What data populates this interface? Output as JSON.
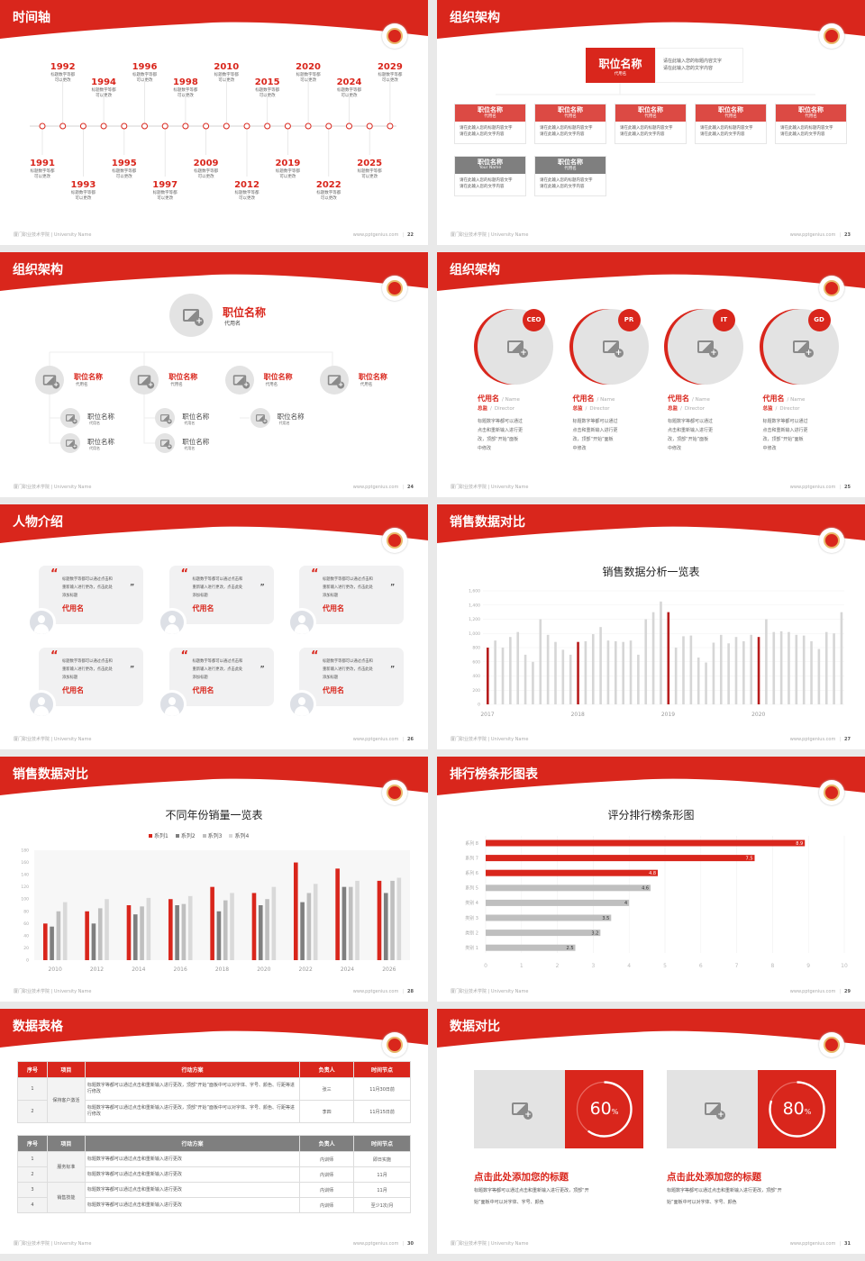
{
  "footer": {
    "school": "厦门职业技术学院 | University Name",
    "url": "www.pptgenius.com"
  },
  "colors": {
    "accent": "#d9261c",
    "gray": "#7f7f7f",
    "light_gray": "#d0d0d0",
    "panel": "#e6e6e6"
  },
  "slides": [
    {
      "title": "时间轴",
      "page": "22",
      "timeline": [
        {
          "year": "1991",
          "text": [
            "标题数字等都",
            "可以更改"
          ]
        },
        {
          "year": "1992",
          "text": [
            "标题数字等都",
            "可以更改"
          ]
        },
        {
          "year": "1993",
          "text": [
            "标题数字等都",
            "可以更改"
          ]
        },
        {
          "year": "1994",
          "text": [
            "标题数字等都",
            "可以更改"
          ]
        },
        {
          "year": "1995",
          "text": [
            "标题数字等都",
            "可以更改"
          ]
        },
        {
          "year": "1996",
          "text": [
            "标题数字等都",
            "可以更改"
          ]
        },
        {
          "year": "1997",
          "text": [
            "标题数字等都",
            "可以更改"
          ]
        },
        {
          "year": "1998",
          "text": [
            "标题数字等都",
            "可以更改"
          ]
        },
        {
          "year": "2009",
          "text": [
            "标题数字等都",
            "可以更改"
          ]
        },
        {
          "year": "2010",
          "text": [
            "标题数字等都",
            "可以更改"
          ]
        },
        {
          "year": "2012",
          "text": [
            "标题数字等都",
            "可以更改"
          ]
        },
        {
          "year": "2015",
          "text": [
            "标题数字等都",
            "可以更改"
          ]
        },
        {
          "year": "2019",
          "text": [
            "标题数字等都",
            "可以更改"
          ]
        },
        {
          "year": "2020",
          "text": [
            "标题数字等都",
            "可以更改"
          ]
        },
        {
          "year": "2022",
          "text": [
            "标题数字等都",
            "可以更改"
          ]
        },
        {
          "year": "2024",
          "text": [
            "标题数字等都",
            "可以更改"
          ]
        },
        {
          "year": "2025",
          "text": [
            "标题数字等都",
            "可以更改"
          ]
        },
        {
          "year": "2029",
          "text": [
            "标题数字等都",
            "可以更改"
          ]
        }
      ]
    },
    {
      "title": "组织架构",
      "page": "23",
      "top": {
        "title": "职位名称",
        "sub": "代用名",
        "desc": [
          "请在此输入您的标题内容文字",
          "请在此输入您的文字内容"
        ]
      },
      "row1": [
        {
          "title": "职位名称",
          "sub": "代用名",
          "desc": [
            "请在此输入您的标题内容文字",
            "请在此输入您的文字内容"
          ]
        },
        {
          "title": "职位名称",
          "sub": "代用名",
          "desc": [
            "请在此输入您的标题内容文字",
            "请在此输入您的文字内容"
          ]
        },
        {
          "title": "职位名称",
          "sub": "代用名",
          "desc": [
            "请在此输入您的标题内容文字",
            "请在此输入您的文字内容"
          ]
        },
        {
          "title": "职位名称",
          "sub": "代用名",
          "desc": [
            "请在此输入您的标题内容文字",
            "请在此输入您的文字内容"
          ]
        },
        {
          "title": "职位名称",
          "sub": "代用名",
          "desc": [
            "请在此输入您的标题内容文字",
            "请在此输入您的文字内容"
          ]
        }
      ],
      "row2": [
        {
          "title": "职位名称",
          "sub": "Your Name",
          "desc": [
            "请在此输入您的标题内容文字",
            "请在此输入您的文字内容"
          ]
        },
        {
          "title": "职位名称",
          "sub": "代用名",
          "desc": [
            "请在此输入您的标题内容文字",
            "请在此输入您的文字内容"
          ]
        }
      ]
    },
    {
      "title": "组织架构",
      "page": "24",
      "top": {
        "title": "职位名称",
        "sub": "代用名"
      },
      "mid": [
        {
          "title": "职位名称",
          "sub": "代用名",
          "children": [
            {
              "title": "职位名称",
              "sub": "代用名"
            },
            {
              "title": "职位名称",
              "sub": "代用名"
            }
          ]
        },
        {
          "title": "职位名称",
          "sub": "代用名",
          "children": [
            {
              "title": "职位名称",
              "sub": "代用名"
            },
            {
              "title": "职位名称",
              "sub": "代用名"
            }
          ]
        },
        {
          "title": "职位名称",
          "sub": "代用名",
          "children": [
            {
              "title": "职位名称",
              "sub": "代用名"
            }
          ]
        },
        {
          "title": "职位名称",
          "sub": "代用名",
          "children": []
        }
      ]
    },
    {
      "title": "组织架构",
      "page": "25",
      "people": [
        {
          "badge": "CEO",
          "name": "代用名",
          "name_en": "/ Name",
          "role": "总监",
          "role_en": "Director",
          "desc": [
            "标题数字等都可以通过",
            "点击和重新输入进行更",
            "改，顶部“开始”面板",
            "中修改"
          ]
        },
        {
          "badge": "PR",
          "name": "代用名",
          "name_en": "/ Name",
          "role": "总监",
          "role_en": "Director",
          "desc": [
            "标题数字等都可以通过",
            "点击和重新输入进行更",
            "改，顶部“开始”面板",
            "中修改"
          ]
        },
        {
          "badge": "IT",
          "name": "代用名",
          "name_en": "/ Name",
          "role": "总监",
          "role_en": "Director",
          "desc": [
            "标题数字等都可以通过",
            "点击和重新输入进行更",
            "改，顶部“开始”面板",
            "中修改"
          ]
        },
        {
          "badge": "GD",
          "name": "代用名",
          "name_en": "/ Name",
          "role": "总监",
          "role_en": "Director",
          "desc": [
            "标题数字等都可以通过",
            "点击和重新输入进行更",
            "改，顶部“开始”面板",
            "中修改"
          ]
        }
      ]
    },
    {
      "title": "人物介绍",
      "page": "26",
      "cards": [
        {
          "quote": [
            "标题数字等都可以通过点击和",
            "重新输入进行更改，点击此处",
            "添加标题"
          ],
          "name": "代用名"
        },
        {
          "quote": [
            "标题数字等都可以通过点击和",
            "重新输入进行更改，点击此处",
            "添加标题"
          ],
          "name": "代用名"
        },
        {
          "quote": [
            "标题数字等都可以通过点击和",
            "重新输入进行更改，点击此处",
            "添加标题"
          ],
          "name": "代用名"
        },
        {
          "quote": [
            "标题数字等都可以通过点击和",
            "重新输入进行更改，点击此处",
            "添加标题"
          ],
          "name": "代用名"
        },
        {
          "quote": [
            "标题数字等都可以通过点击和",
            "重新输入进行更改，点击此处",
            "添加标题"
          ],
          "name": "代用名"
        },
        {
          "quote": [
            "标题数字等都可以通过点击和",
            "重新输入进行更改，点击此处",
            "添加标题"
          ],
          "name": "代用名"
        }
      ]
    },
    {
      "title": "销售数据对比",
      "page": "27"
    },
    {
      "title": "销售数据对比",
      "page": "28"
    },
    {
      "title": "排行榜条形图表",
      "page": "29"
    },
    {
      "title": "数据表格",
      "page": "30",
      "table1": {
        "headers": [
          "序号",
          "项目",
          "行动方案",
          "负责人",
          "时间节点"
        ],
        "group": "保持客户激活",
        "rows": [
          [
            "1",
            "标题数字等都可以通过点击和重新输入进行更改，顶部“开始”面板中可以对字体、字号、颜色、行距等进行修改",
            "张三",
            "11月30日前"
          ],
          [
            "2",
            "标题数字等都可以通过点击和重新输入进行更改，顶部“开始”面板中可以对字体、字号、颜色、行距等进行修改",
            "李四",
            "11月15日前"
          ]
        ]
      },
      "table2": {
        "headers": [
          "序号",
          "项目",
          "行动方案",
          "负责人",
          "时间节点"
        ],
        "groups": [
          "服务标准",
          "销售技能"
        ],
        "rows": [
          [
            "1",
            "标题数字等都可以通过点击和重新输入进行更改",
            "内训师",
            "即日实施"
          ],
          [
            "2",
            "标题数字等都可以通过点击和重新输入进行更改",
            "内训师",
            "11月"
          ],
          [
            "3",
            "标题数字等都可以通过点击和重新输入进行更改",
            "内训师",
            "11月"
          ],
          [
            "4",
            "标题数字等都可以通过点击和重新输入进行更改",
            "内训师",
            "至少1次/月"
          ]
        ]
      }
    },
    {
      "title": "数据对比",
      "page": "31",
      "panels": [
        {
          "percent": 60,
          "value": "60",
          "unit": "%",
          "title": "点击此处添加您的标题",
          "desc": [
            "标题数字等都可以通过点击和重新输入进行更改，顶部“开",
            "始”面板中可以对字体、字号、颜色"
          ]
        },
        {
          "percent": 80,
          "value": "80",
          "unit": "%",
          "title": "点击此处添加您的标题",
          "desc": [
            "标题数字等都可以通过点击和重新输入进行更改，顶部“开",
            "始”面板中可以对字体、字号、颜色"
          ]
        }
      ]
    }
  ],
  "chart_data": [
    {
      "type": "bar",
      "title": "销售数据分析一览表",
      "x_labels": [
        "2017",
        "2018",
        "2019",
        "2020"
      ],
      "ylim": [
        0,
        1600
      ],
      "yticks": [
        "0",
        "200",
        "400",
        "600",
        "800",
        "1,000",
        "1,200",
        "1,400",
        "1,600"
      ],
      "grid": true,
      "highlight_every": 12,
      "values": [
        800,
        900,
        800,
        950,
        1020,
        700,
        600,
        1200,
        980,
        880,
        770,
        700,
        880,
        890,
        990,
        1090,
        900,
        890,
        880,
        900,
        700,
        1200,
        1300,
        1450,
        1300,
        800,
        960,
        970,
        660,
        590,
        870,
        980,
        860,
        950,
        890,
        980,
        950,
        1200,
        1020,
        1030,
        1020,
        980,
        970,
        890,
        780,
        1020,
        1000,
        1300
      ]
    },
    {
      "type": "bar",
      "title": "不同年份销量一览表",
      "categories": [
        "2010",
        "2012",
        "2014",
        "2016",
        "2018",
        "2020",
        "2022",
        "2024",
        "2026"
      ],
      "ylim": [
        0,
        180
      ],
      "yticks": [
        "0",
        "20",
        "40",
        "60",
        "80",
        "100",
        "120",
        "140",
        "160",
        "180"
      ],
      "legend": "top",
      "series": [
        {
          "name": "系列1",
          "color": "#d9261c",
          "values": [
            60,
            80,
            90,
            100,
            120,
            110,
            160,
            150,
            130
          ]
        },
        {
          "name": "系列2",
          "color": "#7f7f7f",
          "values": [
            55,
            60,
            75,
            90,
            80,
            90,
            95,
            120,
            110
          ]
        },
        {
          "name": "系列3",
          "color": "#bfbfbf",
          "values": [
            80,
            85,
            88,
            92,
            98,
            100,
            110,
            120,
            130
          ]
        },
        {
          "name": "系列4",
          "color": "#d9d9d9",
          "values": [
            95,
            100,
            102,
            105,
            110,
            120,
            125,
            130,
            135
          ]
        }
      ]
    },
    {
      "type": "bar",
      "orientation": "horizontal",
      "title": "评分排行榜条形图",
      "categories": [
        "类别 1",
        "类别 2",
        "类别 3",
        "类别 4",
        "系列 5",
        "系列 6",
        "系列 7",
        "系列 8"
      ],
      "values": [
        2.5,
        3.2,
        3.5,
        4,
        4.6,
        4.8,
        7.5,
        8.9
      ],
      "labels": [
        "2.5",
        "3.2",
        "3.5",
        "4",
        "4.6",
        "4.8",
        "7.5",
        "8.9"
      ],
      "highlight_top": 3,
      "xlim": [
        0,
        10
      ],
      "xticks": [
        "0",
        "1",
        "2",
        "3",
        "4",
        "5",
        "6",
        "7",
        "8",
        "9",
        "10"
      ]
    }
  ]
}
